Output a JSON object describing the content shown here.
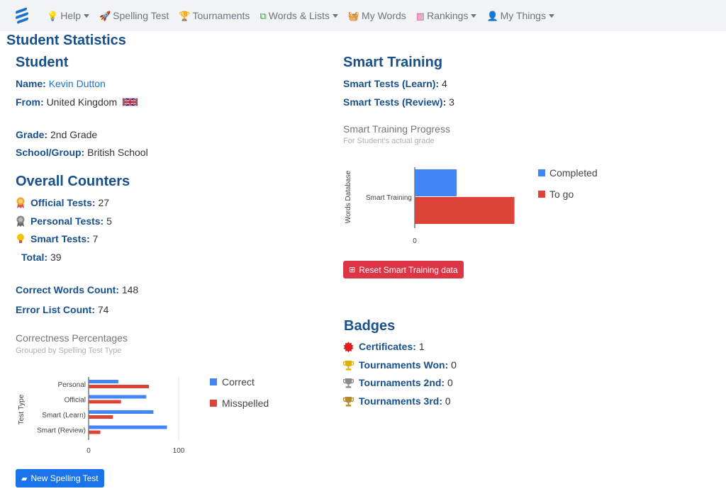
{
  "nav": {
    "items": [
      {
        "label": "Help",
        "icon": "lightbulb-icon",
        "glyph": "💡",
        "color": "#f5c400",
        "dropdown": true
      },
      {
        "label": "Spelling Test",
        "icon": "rocket-icon",
        "glyph": "🚀",
        "color": "#ff7a1a",
        "dropdown": false
      },
      {
        "label": "Tournaments",
        "icon": "trophy-icon",
        "glyph": "🏆",
        "color": "#e0a800",
        "dropdown": false
      },
      {
        "label": "Words & Lists",
        "icon": "cubes-icon",
        "glyph": "⧉",
        "color": "#28a745",
        "dropdown": true
      },
      {
        "label": "My Words",
        "icon": "basket-icon",
        "glyph": "🧺",
        "color": "#dc3545",
        "dropdown": false
      },
      {
        "label": "Rankings",
        "icon": "bar-chart-icon",
        "glyph": "▥",
        "color": "#e83e8c",
        "dropdown": true
      },
      {
        "label": "My Things",
        "icon": "user-icon",
        "glyph": "👤",
        "color": "#1a73c9",
        "dropdown": true
      }
    ]
  },
  "page_title": "Student Statistics",
  "student": {
    "heading": "Student",
    "name_label": "Name:",
    "name_value": "Kevin Dutton",
    "from_label": "From:",
    "from_value": "United Kingdom",
    "grade_label": "Grade:",
    "grade_value": "2nd Grade",
    "school_label": "School/Group:",
    "school_value": "British School"
  },
  "counters": {
    "heading": "Overall Counters",
    "official_label": "Official Tests:",
    "official_value": "27",
    "personal_label": "Personal Tests:",
    "personal_value": "5",
    "smart_label": "Smart Tests:",
    "smart_value": "7",
    "total_label": "Total:",
    "total_value": "39",
    "correct_label": "Correct Words Count:",
    "correct_value": "148",
    "error_label": "Error List Count:",
    "error_value": "74"
  },
  "smart_training": {
    "heading": "Smart Training",
    "learn_label": "Smart Tests (Learn):",
    "learn_value": "4",
    "review_label": "Smart Tests (Review):",
    "review_value": "3",
    "reset_button": "Reset Smart Training data"
  },
  "badges": {
    "heading": "Badges",
    "certificates_label": "Certificates:",
    "certificates_value": "1",
    "won_label": "Tournaments Won:",
    "won_value": "0",
    "second_label": "Tournaments 2nd:",
    "second_value": "0",
    "third_label": "Tournaments 3rd:",
    "third_value": "0"
  },
  "new_test_button": "New Spelling Test",
  "colors": {
    "blue": "#4285f4",
    "red": "#db4437",
    "heading": "#17508a"
  },
  "chart_data": [
    {
      "type": "bar",
      "orientation": "horizontal",
      "title": "Correctness Percentages",
      "subtitle": "Grouped by Spelling Test Type",
      "ylabel": "Test Type",
      "categories": [
        "Personal",
        "Official",
        "Smart (Learn)",
        "Smart (Review)"
      ],
      "series": [
        {
          "name": "Correct",
          "color": "#4285f4",
          "values": [
            33,
            64,
            72,
            87
          ]
        },
        {
          "name": "Misspelled",
          "color": "#db4437",
          "values": [
            67,
            36,
            27,
            13
          ]
        }
      ],
      "xlim": [
        0,
        100
      ],
      "xticks": [
        "0",
        "100"
      ],
      "legend": "right"
    },
    {
      "type": "bar",
      "orientation": "horizontal",
      "title": "Smart Training Progress",
      "subtitle": "For Student's actual grade",
      "ylabel": "Words Database",
      "categories": [
        "Smart Training"
      ],
      "series": [
        {
          "name": "Completed",
          "color": "#4285f4",
          "values": [
            4
          ]
        },
        {
          "name": "To go",
          "color": "#db4437",
          "values": [
            9.5
          ]
        }
      ],
      "xticks": [
        "0"
      ],
      "legend": "right"
    }
  ]
}
